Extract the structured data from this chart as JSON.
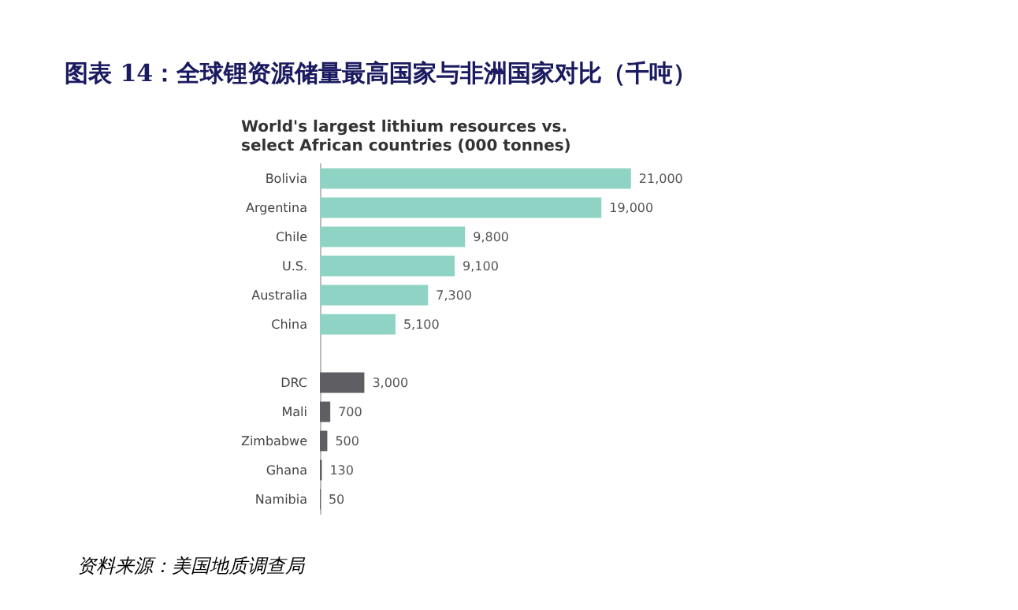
{
  "chart_data": {
    "type": "bar",
    "orientation": "horizontal",
    "title": "图表 14：全球锂资源储量最高国家与非洲国家对比（千吨）",
    "subtitle": "World's largest lithium resources vs. select African countries (000 tonnes)",
    "annotations": [
      "资料来源：美国地质调查局"
    ],
    "categories": [
      "Bolivia",
      "Argentina",
      "Chile",
      "U.S.",
      "Australia",
      "China",
      null,
      "DRC",
      "Mali",
      "Zimbabwe",
      "Ghana",
      "Namibia"
    ],
    "values": [
      21000,
      19000,
      9800,
      9100,
      7300,
      5100,
      null,
      3000,
      700,
      500,
      130,
      50
    ],
    "value_labels": [
      "21,000",
      "19,000",
      "9,800",
      "9,100",
      "7,300",
      "5,100",
      null,
      "3,000",
      "700",
      "500",
      "130",
      "50"
    ],
    "colors": [
      "#8fd3c4",
      "#8fd3c4",
      "#8fd3c4",
      "#8fd3c4",
      "#8fd3c4",
      "#8fd3c4",
      "#8fd3c4",
      "#5f5f63",
      "#5f5f63",
      "#5f5f63",
      "#5f5f63",
      "#5f5f63"
    ]
  }
}
